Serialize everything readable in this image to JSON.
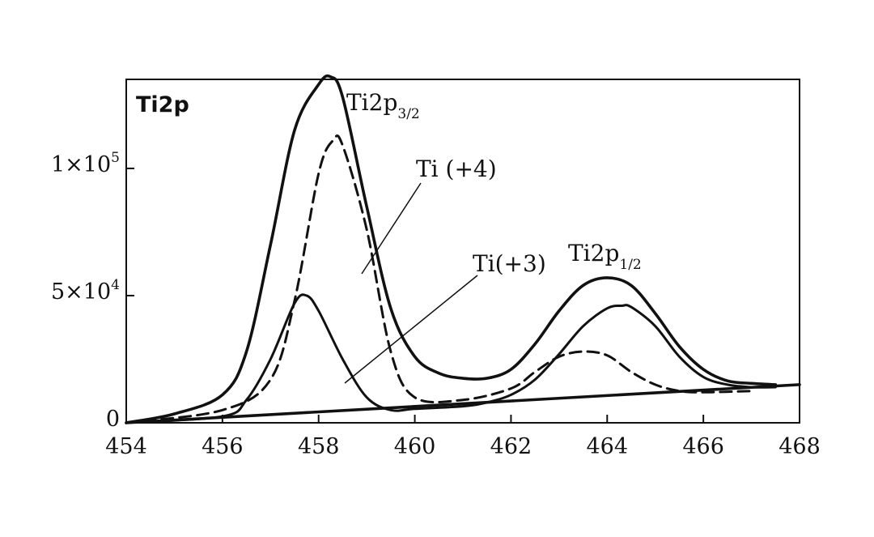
{
  "chart_data": {
    "type": "line",
    "title": "",
    "panel_label": "Ti2p",
    "xlabel": "",
    "ylabel": "",
    "xlim": [
      454,
      468
    ],
    "ylim": [
      0,
      135000
    ],
    "x_ticks": [
      454,
      456,
      458,
      460,
      462,
      464,
      466,
      468
    ],
    "y_ticks": [
      {
        "value": 0,
        "label": "0",
        "label_sup": ""
      },
      {
        "value": 50000,
        "label": "5×10",
        "label_sup": "4"
      },
      {
        "value": 100000,
        "label": "1×10",
        "label_sup": "5"
      }
    ],
    "grid": false,
    "series": [
      {
        "role": "envelope",
        "style": "solid-thick",
        "x": [
          454.0,
          455.0,
          456.0,
          456.5,
          457.0,
          457.5,
          458.0,
          458.25,
          458.5,
          459.0,
          459.5,
          460.0,
          460.5,
          461.0,
          461.5,
          462.0,
          462.5,
          463.0,
          463.5,
          464.0,
          464.5,
          465.0,
          465.5,
          466.0,
          466.5,
          467.0,
          467.5
        ],
        "y": [
          0,
          3500,
          11000,
          28000,
          70000,
          115000,
          133000,
          136000,
          128000,
          85000,
          45000,
          26000,
          19500,
          17500,
          17500,
          21000,
          31000,
          44000,
          54000,
          57000,
          54000,
          43000,
          30000,
          21000,
          16500,
          15500,
          15000
        ]
      },
      {
        "role": "component",
        "name": "Ti (+4)",
        "style": "dashed",
        "x": [
          454.0,
          456.0,
          457.0,
          457.5,
          458.0,
          458.3,
          458.5,
          459.0,
          459.5,
          460.0,
          461.0,
          462.0,
          462.5,
          463.0,
          463.5,
          464.0,
          464.5,
          465.0,
          465.5,
          466.0,
          467.0
        ],
        "y": [
          0,
          5000,
          17000,
          48000,
          98000,
          111000,
          109000,
          76000,
          28000,
          10000,
          9000,
          13500,
          20000,
          26000,
          28000,
          26500,
          20000,
          15000,
          12500,
          12000,
          12500
        ]
      },
      {
        "role": "component",
        "name": "Ti(+3)",
        "style": "solid",
        "x": [
          454.0,
          456.0,
          456.5,
          457.0,
          457.5,
          457.75,
          458.0,
          458.5,
          459.0,
          459.5,
          460.0,
          461.0,
          461.5,
          462.0,
          462.5,
          463.0,
          463.5,
          464.0,
          464.3,
          464.5,
          465.0,
          465.5,
          466.0,
          466.5,
          467.0,
          467.5
        ],
        "y": [
          0,
          2500,
          9000,
          25000,
          47000,
          50000,
          44000,
          25000,
          10000,
          5000,
          5500,
          6500,
          8000,
          11000,
          17000,
          27000,
          38000,
          45000,
          46000,
          45500,
          38000,
          26000,
          18000,
          15000,
          14000,
          14000
        ]
      },
      {
        "role": "baseline",
        "style": "solid-thick",
        "x": [
          454.0,
          468.0
        ],
        "y": [
          0,
          15000
        ]
      }
    ],
    "annotations": [
      {
        "text": "Ti2p",
        "sub": "3/2"
      },
      {
        "text": "Ti (+4)",
        "sub": ""
      },
      {
        "text": "Ti(+3)",
        "sub": ""
      },
      {
        "text": "Ti2p",
        "sub": "1/2"
      }
    ]
  },
  "colors": {
    "ink": "#111111",
    "background": "#ffffff"
  }
}
